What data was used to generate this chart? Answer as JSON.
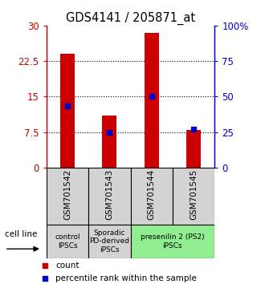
{
  "title": "GDS4141 / 205871_at",
  "categories": [
    "GSM701542",
    "GSM701543",
    "GSM701544",
    "GSM701545"
  ],
  "counts": [
    24.0,
    11.0,
    28.5,
    8.0
  ],
  "percentiles": [
    43.5,
    25.0,
    50.0,
    27.0
  ],
  "ylim_left": [
    0,
    30
  ],
  "ylim_right": [
    0,
    100
  ],
  "yticks_left": [
    0,
    7.5,
    15,
    22.5,
    30
  ],
  "yticks_right": [
    0,
    25,
    50,
    75,
    100
  ],
  "bar_color": "#cc0000",
  "marker_color": "#0000cc",
  "bar_width": 0.35,
  "group_defs": [
    {
      "label": "control\nIPSCs",
      "start": 0,
      "end": 0,
      "color": "#d3d3d3"
    },
    {
      "label": "Sporadic\nPD-derived\niPSCs",
      "start": 1,
      "end": 1,
      "color": "#d3d3d3"
    },
    {
      "label": "presenilin 2 (PS2)\niPSCs",
      "start": 2,
      "end": 3,
      "color": "#90EE90"
    }
  ],
  "legend_count_label": "count",
  "legend_percentile_label": "percentile rank within the sample",
  "cell_line_label": "cell line"
}
